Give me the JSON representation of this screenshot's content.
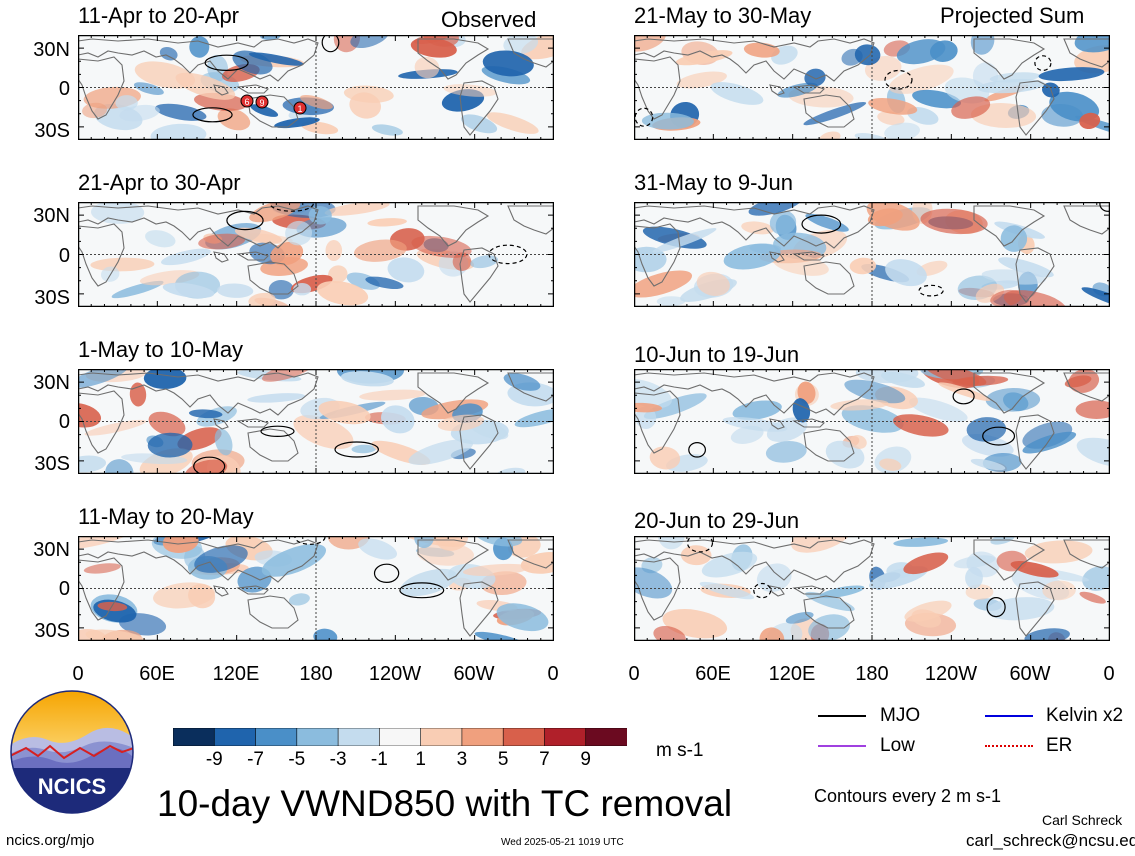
{
  "left_column_label": "Observed",
  "right_column_label": "Projected Sum",
  "lat_labels": [
    "30N",
    "0",
    "30S"
  ],
  "lon_labels": [
    "0",
    "60E",
    "120E",
    "180",
    "120W",
    "60W",
    "0"
  ],
  "panels_left": [
    {
      "title": "11-Apr to 20-Apr"
    },
    {
      "title": "21-Apr to 30-Apr"
    },
    {
      "title": "1-May to 10-May"
    },
    {
      "title": "11-May to 20-May"
    }
  ],
  "panels_right": [
    {
      "title": "21-May to 30-May"
    },
    {
      "title": "31-May to 9-Jun"
    },
    {
      "title": "10-Jun to 19-Jun"
    },
    {
      "title": "20-Jun to 29-Jun"
    }
  ],
  "colorbar": {
    "labels": [
      "-9",
      "-7",
      "-5",
      "-3",
      "-1",
      "1",
      "3",
      "5",
      "7",
      "9"
    ],
    "colors": [
      "#0a2e5c",
      "#1f64ad",
      "#4a8fc8",
      "#8bbcde",
      "#c4dcee",
      "#f7f7f7",
      "#f9cdb4",
      "#f0a07e",
      "#d8604b",
      "#b0202a",
      "#6b0a20"
    ],
    "unit": "m s-1"
  },
  "legend": {
    "items": [
      {
        "label": "MJO",
        "color": "#000000"
      },
      {
        "label": "Kelvin x2",
        "color": "#0000dd"
      },
      {
        "label": "Low",
        "color": "#a040e0"
      },
      {
        "label": "ER",
        "color": "#dd0000"
      }
    ],
    "contours_note": "Contours every 2 m s-1"
  },
  "logo_text": "NCICS",
  "main_title": "10-day VWND850 with TC removal",
  "author": "Carl Schreck",
  "email": "carl_schreck@ncsu.edu",
  "website": "ncics.org/mjo",
  "timestamp": "Wed 2025-05-21 1019 UTC",
  "tc_markers": [
    "6",
    "9",
    "1"
  ]
}
